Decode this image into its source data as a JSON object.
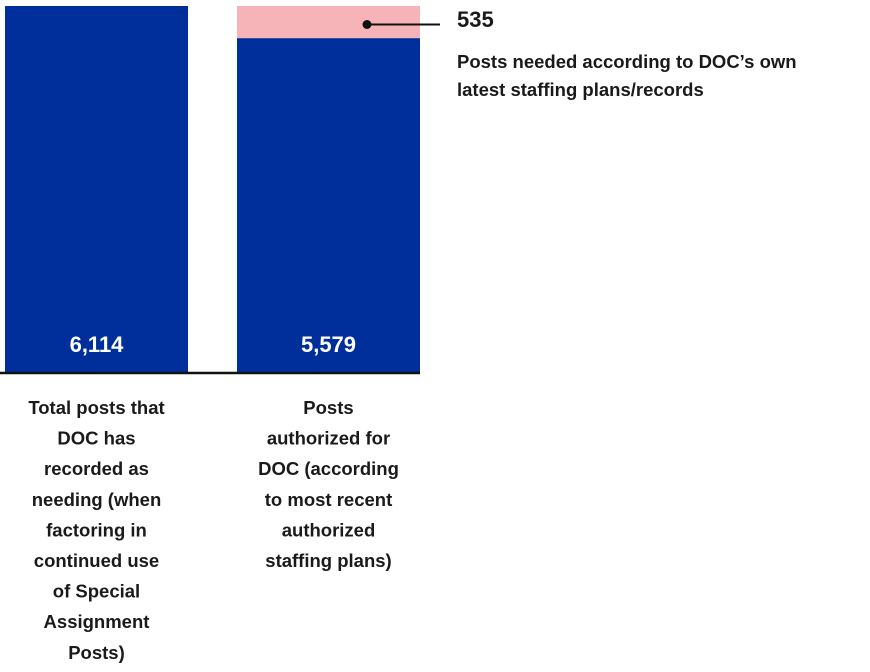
{
  "chart_data": {
    "type": "bar",
    "categories": [
      [
        "Total posts that",
        "DOC has",
        "recorded as",
        "needing (when",
        "factoring in",
        "continued use",
        "of Special",
        "Assignment",
        "Posts)"
      ],
      [
        "Posts",
        "authorized for",
        "DOC (according",
        "to most recent",
        "authorized",
        "staffing plans)"
      ]
    ],
    "values": [
      6114,
      5579
    ],
    "value_labels": [
      "6,114",
      "5,579"
    ],
    "gap": {
      "bar_index": 1,
      "value": 535,
      "value_label": "535",
      "annotation": [
        "Posts needed according to DOC’s own",
        "latest staffing plans/records"
      ]
    },
    "ylim": [
      0,
      6114
    ],
    "grid": false,
    "legend": "none"
  },
  "colors": {
    "bar": "#002f9b",
    "gap": "#f7b4b8",
    "baseline": "#111111",
    "text": "#1a1a1a",
    "bar_text": "#ffffff"
  }
}
